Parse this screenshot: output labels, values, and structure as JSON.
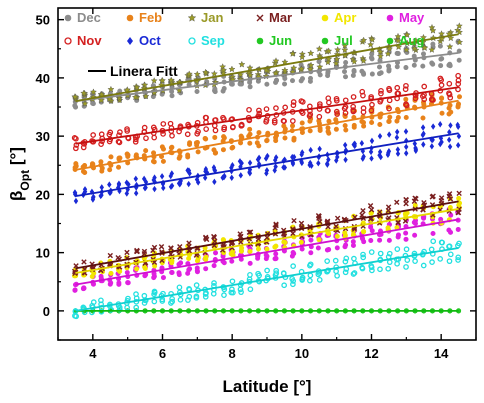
{
  "chart_data": {
    "type": "scatter",
    "xlabel": "Latitude [°]",
    "ylabel_main": "β",
    "ylabel_sub": "Opt",
    "ylabel_tail": " [°]",
    "xlim": [
      3,
      15
    ],
    "ylim": [
      -5,
      52
    ],
    "xticks": [
      4,
      6,
      8,
      10,
      12,
      14
    ],
    "yticks": [
      0,
      10,
      20,
      30,
      40,
      50
    ],
    "x_start": 3.5,
    "x_end": 14.5,
    "fit_label": "Linera Fitt",
    "series": [
      {
        "name": "Dec",
        "color": "#8c8c8c",
        "marker": "circle",
        "fit_start": 36.0,
        "fit_end": 44.3
      },
      {
        "name": "Feb",
        "color": "#e8821a",
        "marker": "circle",
        "fit_start": 24.2,
        "fit_end": 36.1
      },
      {
        "name": "Jan",
        "color": "#9a9a28",
        "marker": "star",
        "fit_start": 36.0,
        "fit_end": 47.5
      },
      {
        "name": "Mar",
        "color": "#7a1f1f",
        "marker": "cross",
        "fit_start": 7.3,
        "fit_end": 18.8
      },
      {
        "name": "Apr",
        "color": "#f2e600",
        "marker": "circle",
        "fit_start": 6.5,
        "fit_end": 17.5
      },
      {
        "name": "May",
        "color": "#e020e0",
        "marker": "circle",
        "fit_start": 4.5,
        "fit_end": 15.7
      },
      {
        "name": "Nov",
        "color": "#d42020",
        "marker": "circle-open",
        "fit_start": 28.7,
        "fit_end": 38.4
      },
      {
        "name": "Oct",
        "color": "#1a2ad6",
        "marker": "diamond",
        "fit_start": 19.7,
        "fit_end": 30.5
      },
      {
        "name": "Sep",
        "color": "#22e0e0",
        "marker": "circle-open",
        "fit_start": 0.0,
        "fit_end": 10.8
      },
      {
        "name": "Jun",
        "color": "#22c822",
        "marker": "circle",
        "fit_start": 0.0,
        "fit_end": 0.0
      },
      {
        "name": "Jul",
        "color": "#22c822",
        "marker": "circle",
        "fit_start": 0.0,
        "fit_end": 0.0
      },
      {
        "name": "Aug",
        "color": "#22c822",
        "marker": "circle",
        "fit_start": 0.0,
        "fit_end": 0.0
      }
    ]
  }
}
